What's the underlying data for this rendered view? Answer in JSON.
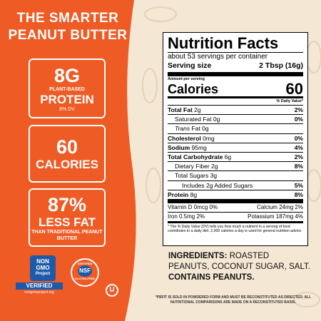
{
  "header": {
    "title": "THE SMARTER PEANUT BUTTER"
  },
  "callouts": [
    {
      "value": "8G",
      "label": "PLANT-BASED",
      "emphasis": "PROTEIN",
      "note": "8% DV"
    },
    {
      "value": "60",
      "label": "CALORIES"
    },
    {
      "value": "87%",
      "label": "LESS FAT",
      "note": "THAN TRADITIONAL PEANUT BUTTER"
    }
  ],
  "badges": [
    {
      "line1": "NON",
      "line2": "GMO",
      "line3": "Project",
      "line4": "VERIFIED",
      "line5": "nongmoproject.org"
    },
    {
      "line1": "CERTIFIED",
      "line2": "NSF",
      "line3": "GLUTEN-FREE"
    },
    {
      "line1": "U"
    }
  ],
  "nutrition": {
    "title": "Nutrition Facts",
    "servings": "about 53 servings per container",
    "serving_size": {
      "label": "Serving size",
      "value": "2 Tbsp (16g)"
    },
    "amount_per_serving": "Amount per serving",
    "calories": {
      "label": "Calories",
      "value": "60"
    },
    "dv_header": "% Daily Value*",
    "rows": [
      {
        "name": "Total Fat",
        "amount": "2g",
        "dv": "2%"
      },
      {
        "name": "Saturated Fat",
        "amount": "0g",
        "dv": "0%"
      },
      {
        "name": "Trans",
        "amount": "Fat 0g"
      },
      {
        "name": "Cholesterol",
        "amount": "0mg",
        "dv": "0%"
      },
      {
        "name": "Sodium",
        "amount": "95mg",
        "dv": "4%"
      },
      {
        "name": "Total Carbohydrate",
        "amount": "6g",
        "dv": "2%"
      },
      {
        "name": "Dietary Fiber",
        "amount": "2g",
        "dv": "8%"
      },
      {
        "name": "Total Sugars",
        "amount": "3g"
      },
      {
        "name": "Includes 2g Added Sugars",
        "dv": "5%"
      },
      {
        "name": "Protein",
        "amount": "8g",
        "dv": "8%"
      }
    ],
    "vitamins": [
      "Vitamin D 0mcg 0%",
      "Calcium 24mg 2%",
      "Iron 0.5mg 2%",
      "Potassium 187mg 4%"
    ],
    "footnote": "* The % Daily Value (DV) tells you how much a nutrient in a serving of food contributes to a daily diet. 2,000 calories a day is used for general nutrition advice."
  },
  "ingredients": {
    "heading": "INGREDIENTS:",
    "list": "ROASTED PEANUTS, COCONUT SUGAR, SALT.",
    "allergen": "CONTAINS PEANUTS."
  },
  "disclaimer": "*PBFIT IS SOLD IN POWDERED FORM AND MUST BE RECONSTITUTED AS DIRECTED. ALL NUTRITIONAL COMPARISONS ARE MADE ON A RECONSTITUTED BASIS."
}
